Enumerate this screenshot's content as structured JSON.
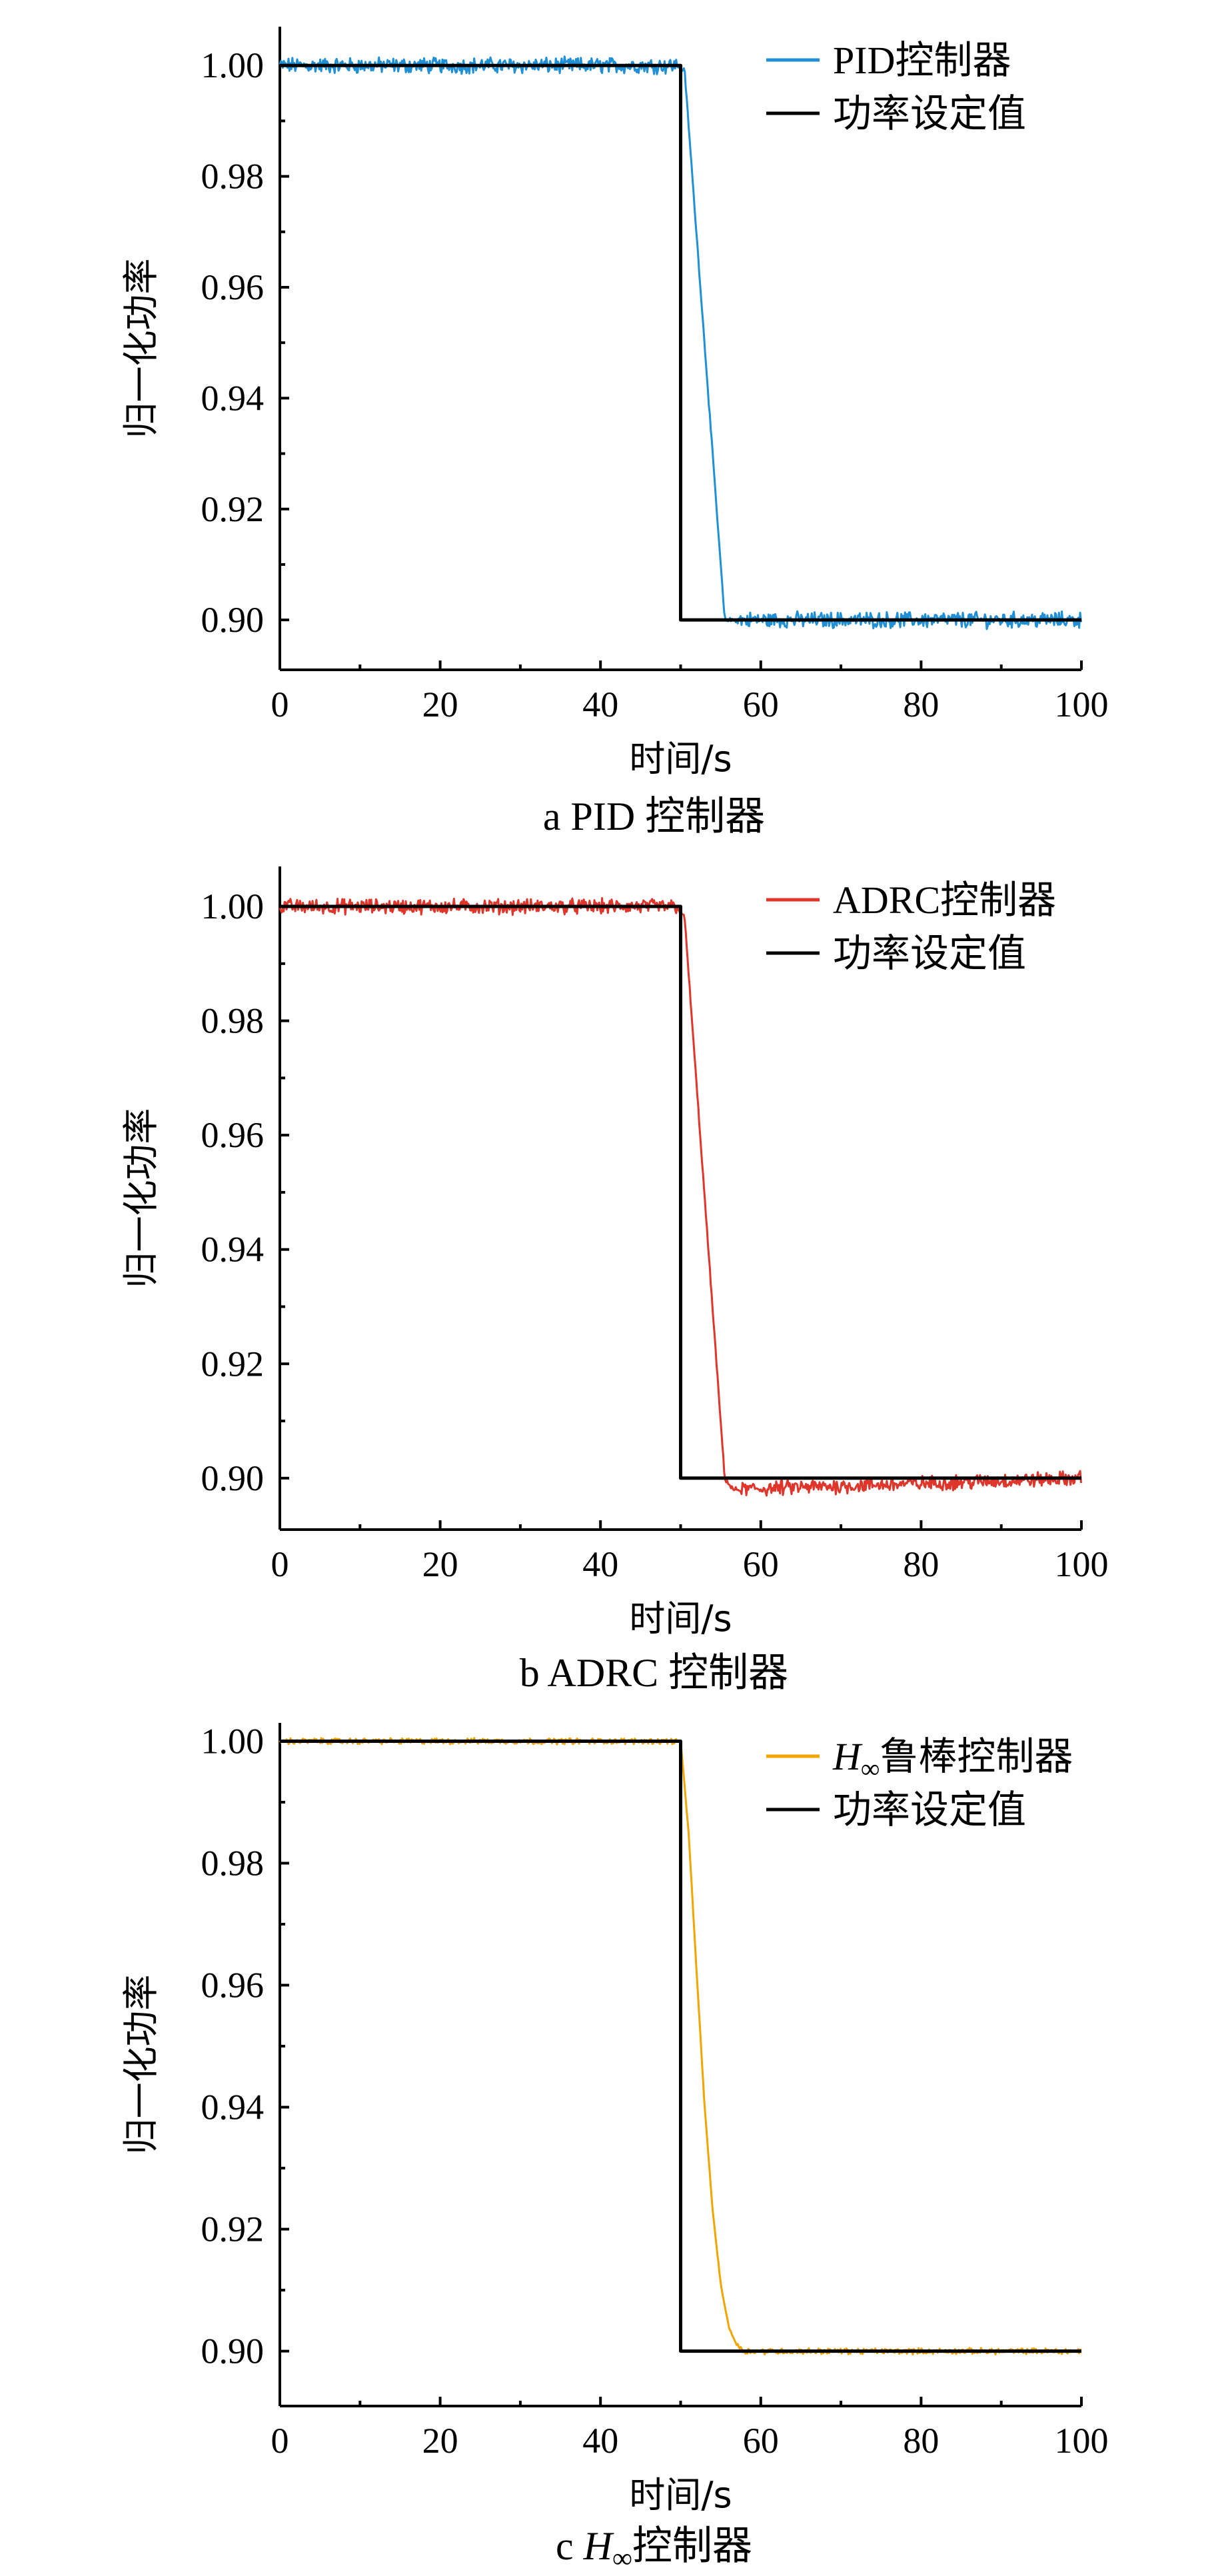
{
  "chart_data": [
    {
      "type": "line",
      "caption": "a  PID 控制器",
      "xlabel": "时间/s",
      "ylabel": "归一化功率",
      "xlim": [
        0,
        100
      ],
      "ylim": [
        0.891,
        1.007
      ],
      "xticks": [
        0,
        20,
        40,
        60,
        80,
        100
      ],
      "yticks": [
        0.9,
        0.92,
        0.94,
        0.96,
        0.98,
        1.0
      ],
      "ytick_labels": [
        "0.90",
        "0.92",
        "0.94",
        "0.96",
        "0.98",
        "1.00"
      ],
      "legend_position": "top-right",
      "series": [
        {
          "name": "PID控制器",
          "color": "#1f8fd6",
          "x": [
            0,
            49.5,
            50.5,
            55.5,
            100
          ],
          "y": [
            1.0,
            1.0,
            0.999,
            0.9,
            0.9
          ],
          "noise": 0.0012
        },
        {
          "name": "功率设定值",
          "color": "#000000",
          "x": [
            0,
            50,
            50,
            100
          ],
          "y": [
            1.0,
            1.0,
            0.9,
            0.9
          ],
          "noise": 0
        }
      ]
    },
    {
      "type": "line",
      "caption": "b  ADRC 控制器",
      "xlabel": "时间/s",
      "ylabel": "归一化功率",
      "xlim": [
        0,
        100
      ],
      "ylim": [
        0.891,
        1.007
      ],
      "xticks": [
        0,
        20,
        40,
        60,
        80,
        100
      ],
      "yticks": [
        0.9,
        0.92,
        0.94,
        0.96,
        0.98,
        1.0
      ],
      "ytick_labels": [
        "0.90",
        "0.92",
        "0.94",
        "0.96",
        "0.98",
        "1.00"
      ],
      "legend_position": "top-right",
      "series": [
        {
          "name": "ADRC控制器",
          "color": "#e0352b",
          "x": [
            0,
            49.5,
            50.5,
            55.5,
            56.5,
            100
          ],
          "y": [
            1.0,
            1.0,
            0.998,
            0.9,
            0.898,
            0.9
          ],
          "noise": 0.0011
        },
        {
          "name": "功率设定值",
          "color": "#000000",
          "x": [
            0,
            50,
            50,
            100
          ],
          "y": [
            1.0,
            1.0,
            0.9,
            0.9
          ],
          "noise": 0
        }
      ]
    },
    {
      "type": "line",
      "caption_prefix": "c",
      "caption_suffix": "控制器",
      "xlabel": "时间/s",
      "ylabel": "归一化功率",
      "xlim": [
        0,
        100
      ],
      "ylim": [
        0.891,
        1.003
      ],
      "xticks": [
        0,
        20,
        40,
        60,
        80,
        100
      ],
      "yticks": [
        0.9,
        0.92,
        0.94,
        0.96,
        0.98,
        1.0
      ],
      "ytick_labels": [
        "0.90",
        "0.92",
        "0.94",
        "0.96",
        "0.98",
        "1.00"
      ],
      "legend_position": "top-right",
      "series": [
        {
          "name": "鲁棒控制器",
          "color": "#f0a500",
          "x": [
            0,
            50,
            51,
            52,
            53,
            54,
            55,
            56,
            57,
            58,
            100
          ],
          "y": [
            1.0,
            1.0,
            0.985,
            0.962,
            0.94,
            0.923,
            0.911,
            0.904,
            0.901,
            0.9,
            0.9
          ],
          "noise": 0.0004
        },
        {
          "name": "功率设定值",
          "color": "#000000",
          "x": [
            0,
            50,
            50,
            100
          ],
          "y": [
            1.0,
            1.0,
            0.9,
            0.9
          ],
          "noise": 0
        }
      ]
    }
  ]
}
